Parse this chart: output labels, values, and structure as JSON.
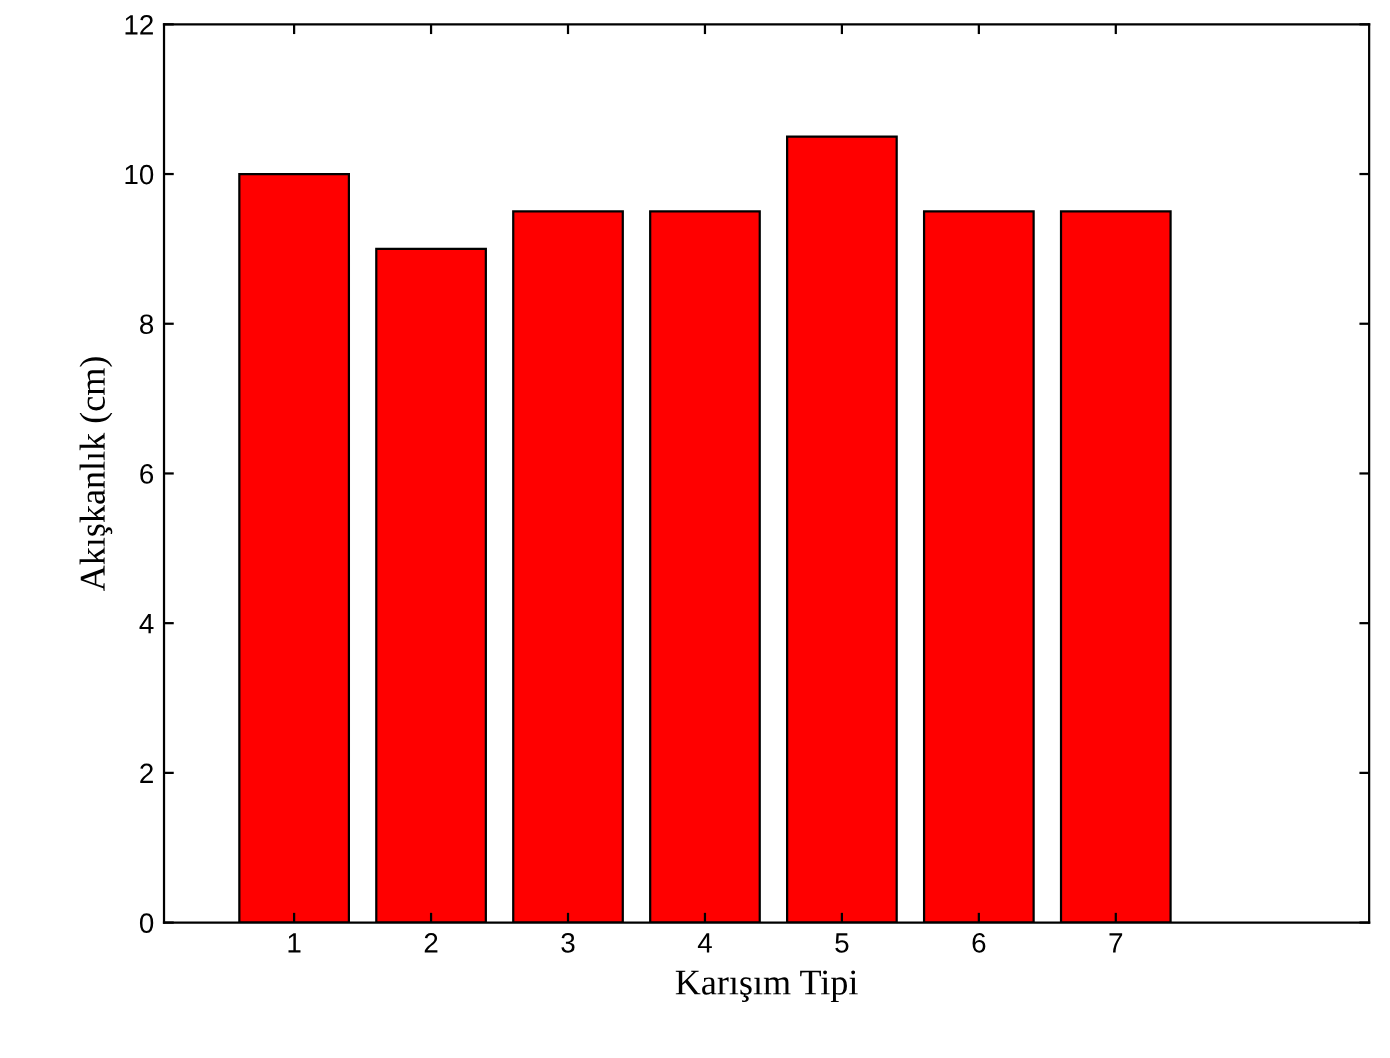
{
  "chart_data": {
    "type": "bar",
    "xlabel": "Karışım Tipi",
    "ylabel": "Akışkanlık (cm)",
    "categories": [
      "1",
      "2",
      "3",
      "4",
      "5",
      "6",
      "7"
    ],
    "values": [
      10,
      9,
      9.5,
      9.5,
      10.5,
      9.5,
      9.5
    ],
    "color": "#ff0000",
    "ylim": [
      0,
      12
    ],
    "yticks": [
      0,
      2,
      4,
      6,
      8,
      10,
      12
    ],
    "grid": false,
    "legend": false
  }
}
